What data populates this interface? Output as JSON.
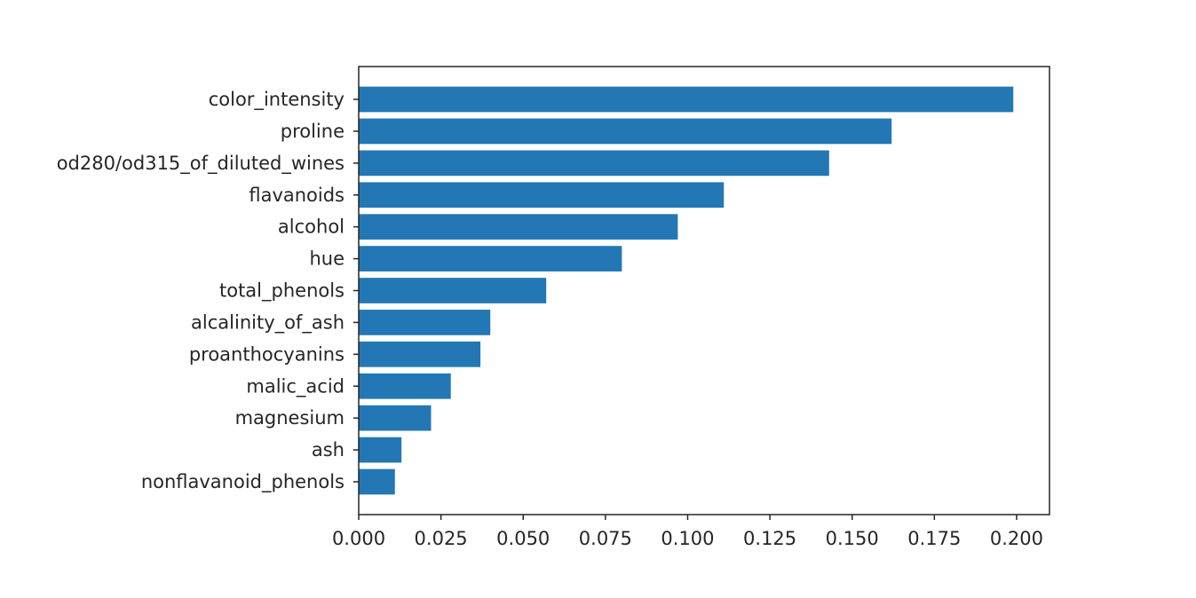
{
  "chart_data": {
    "type": "bar",
    "orientation": "horizontal",
    "title": "",
    "xlabel": "",
    "ylabel": "",
    "xlim": [
      0.0,
      0.21
    ],
    "grid": false,
    "legend": "none",
    "bar_color": "#2377b4",
    "categories": [
      "color_intensity",
      "proline",
      "od280/od315_of_diluted_wines",
      "flavanoids",
      "alcohol",
      "hue",
      "total_phenols",
      "alcalinity_of_ash",
      "proanthocyanins",
      "malic_acid",
      "magnesium",
      "ash",
      "nonflavanoid_phenols"
    ],
    "values": [
      0.199,
      0.162,
      0.143,
      0.111,
      0.097,
      0.08,
      0.057,
      0.04,
      0.037,
      0.028,
      0.022,
      0.013,
      0.011
    ],
    "xticks": [
      0.0,
      0.025,
      0.05,
      0.075,
      0.1,
      0.125,
      0.15,
      0.175,
      0.2
    ],
    "xtick_labels": [
      "0.000",
      "0.025",
      "0.050",
      "0.075",
      "0.100",
      "0.125",
      "0.150",
      "0.175",
      "0.200"
    ]
  }
}
